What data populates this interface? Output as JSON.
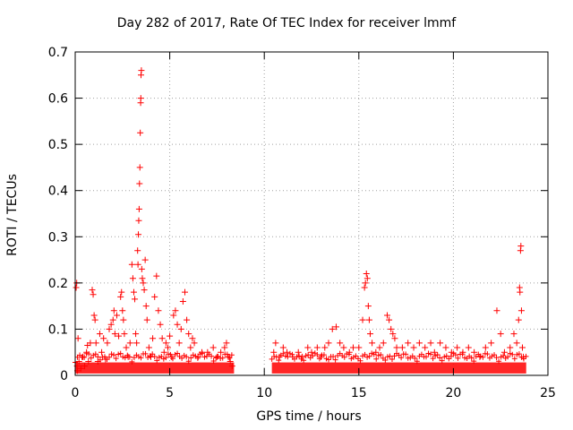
{
  "chart_data": {
    "type": "scatter",
    "title": "Day 282 of 2017, Rate Of TEC Index for receiver lmmf",
    "xlabel": "GPS time / hours",
    "ylabel": "ROTI / TECUs",
    "xlim": [
      0,
      25
    ],
    "ylim": [
      0,
      0.7
    ],
    "xticks": [
      "0",
      "5",
      "10",
      "15",
      "20",
      "25"
    ],
    "yticks": [
      "0",
      "0.1",
      "0.2",
      "0.3",
      "0.4",
      "0.5",
      "0.6",
      "0.7"
    ],
    "grid": true,
    "marker": "+",
    "color": "#ff0000",
    "data_gap_hours": [
      8.4,
      10.4
    ],
    "series": [
      {
        "points": [
          [
            0.05,
            0.19
          ],
          [
            0.08,
            0.2
          ],
          [
            0.1,
            0.02
          ],
          [
            0.12,
            0.01
          ],
          [
            0.15,
            0.08
          ],
          [
            0.2,
            0.03
          ],
          [
            0.3,
            0.015
          ],
          [
            0.4,
            0.04
          ],
          [
            0.5,
            0.02
          ],
          [
            0.6,
            0.05
          ],
          [
            0.65,
            0.065
          ],
          [
            0.7,
            0.03
          ],
          [
            0.8,
            0.07
          ],
          [
            0.9,
            0.185
          ],
          [
            0.95,
            0.175
          ],
          [
            1.0,
            0.13
          ],
          [
            1.05,
            0.12
          ],
          [
            1.1,
            0.07
          ],
          [
            1.2,
            0.03
          ],
          [
            1.3,
            0.09
          ],
          [
            1.4,
            0.05
          ],
          [
            1.5,
            0.08
          ],
          [
            1.6,
            0.035
          ],
          [
            1.7,
            0.07
          ],
          [
            1.8,
            0.1
          ],
          [
            1.9,
            0.11
          ],
          [
            2.0,
            0.12
          ],
          [
            2.05,
            0.14
          ],
          [
            2.1,
            0.09
          ],
          [
            2.2,
            0.13
          ],
          [
            2.3,
            0.085
          ],
          [
            2.4,
            0.17
          ],
          [
            2.45,
            0.18
          ],
          [
            2.5,
            0.14
          ],
          [
            2.55,
            0.12
          ],
          [
            2.6,
            0.09
          ],
          [
            2.7,
            0.06
          ],
          [
            2.8,
            0.04
          ],
          [
            2.9,
            0.07
          ],
          [
            3.0,
            0.24
          ],
          [
            3.05,
            0.21
          ],
          [
            3.1,
            0.18
          ],
          [
            3.15,
            0.165
          ],
          [
            3.2,
            0.09
          ],
          [
            3.25,
            0.07
          ],
          [
            3.3,
            0.27
          ],
          [
            3.32,
            0.24
          ],
          [
            3.34,
            0.305
          ],
          [
            3.36,
            0.335
          ],
          [
            3.38,
            0.36
          ],
          [
            3.4,
            0.415
          ],
          [
            3.42,
            0.45
          ],
          [
            3.44,
            0.525
          ],
          [
            3.46,
            0.59
          ],
          [
            3.47,
            0.6
          ],
          [
            3.48,
            0.65
          ],
          [
            3.5,
            0.66
          ],
          [
            3.52,
            0.23
          ],
          [
            3.55,
            0.21
          ],
          [
            3.6,
            0.2
          ],
          [
            3.65,
            0.185
          ],
          [
            3.7,
            0.25
          ],
          [
            3.75,
            0.15
          ],
          [
            3.8,
            0.12
          ],
          [
            3.9,
            0.06
          ],
          [
            4.0,
            0.04
          ],
          [
            4.1,
            0.08
          ],
          [
            4.2,
            0.17
          ],
          [
            4.3,
            0.215
          ],
          [
            4.4,
            0.14
          ],
          [
            4.5,
            0.11
          ],
          [
            4.6,
            0.08
          ],
          [
            4.7,
            0.05
          ],
          [
            4.8,
            0.07
          ],
          [
            4.9,
            0.06
          ],
          [
            5.0,
            0.085
          ],
          [
            5.1,
            0.04
          ],
          [
            5.2,
            0.13
          ],
          [
            5.3,
            0.14
          ],
          [
            5.4,
            0.11
          ],
          [
            5.5,
            0.07
          ],
          [
            5.6,
            0.1
          ],
          [
            5.7,
            0.16
          ],
          [
            5.8,
            0.18
          ],
          [
            5.9,
            0.12
          ],
          [
            6.0,
            0.09
          ],
          [
            6.1,
            0.06
          ],
          [
            6.2,
            0.08
          ],
          [
            6.3,
            0.07
          ],
          [
            6.5,
            0.04
          ],
          [
            6.7,
            0.05
          ],
          [
            7.0,
            0.05
          ],
          [
            7.3,
            0.06
          ],
          [
            7.5,
            0.04
          ],
          [
            7.7,
            0.05
          ],
          [
            7.9,
            0.06
          ],
          [
            8.0,
            0.07
          ],
          [
            8.1,
            0.04
          ],
          [
            8.2,
            0.03
          ],
          [
            8.3,
            0.02
          ],
          [
            10.5,
            0.05
          ],
          [
            10.6,
            0.07
          ],
          [
            10.8,
            0.04
          ],
          [
            11.0,
            0.06
          ],
          [
            11.2,
            0.05
          ],
          [
            11.5,
            0.04
          ],
          [
            11.8,
            0.05
          ],
          [
            12.0,
            0.04
          ],
          [
            12.3,
            0.06
          ],
          [
            12.5,
            0.05
          ],
          [
            12.8,
            0.06
          ],
          [
            13.0,
            0.04
          ],
          [
            13.2,
            0.06
          ],
          [
            13.4,
            0.07
          ],
          [
            13.6,
            0.1
          ],
          [
            13.8,
            0.105
          ],
          [
            14.0,
            0.07
          ],
          [
            14.2,
            0.06
          ],
          [
            14.5,
            0.05
          ],
          [
            14.7,
            0.06
          ],
          [
            15.0,
            0.06
          ],
          [
            15.2,
            0.12
          ],
          [
            15.3,
            0.19
          ],
          [
            15.35,
            0.2
          ],
          [
            15.4,
            0.22
          ],
          [
            15.45,
            0.21
          ],
          [
            15.5,
            0.15
          ],
          [
            15.55,
            0.12
          ],
          [
            15.6,
            0.09
          ],
          [
            15.7,
            0.07
          ],
          [
            15.9,
            0.05
          ],
          [
            16.1,
            0.06
          ],
          [
            16.3,
            0.07
          ],
          [
            16.5,
            0.13
          ],
          [
            16.6,
            0.12
          ],
          [
            16.7,
            0.1
          ],
          [
            16.8,
            0.09
          ],
          [
            16.9,
            0.08
          ],
          [
            17.0,
            0.06
          ],
          [
            17.3,
            0.06
          ],
          [
            17.6,
            0.07
          ],
          [
            17.9,
            0.06
          ],
          [
            18.2,
            0.07
          ],
          [
            18.5,
            0.06
          ],
          [
            18.8,
            0.07
          ],
          [
            19.0,
            0.05
          ],
          [
            19.3,
            0.07
          ],
          [
            19.6,
            0.06
          ],
          [
            19.9,
            0.05
          ],
          [
            20.2,
            0.06
          ],
          [
            20.5,
            0.05
          ],
          [
            20.8,
            0.06
          ],
          [
            21.1,
            0.05
          ],
          [
            21.4,
            0.04
          ],
          [
            21.7,
            0.06
          ],
          [
            22.0,
            0.07
          ],
          [
            22.3,
            0.14
          ],
          [
            22.5,
            0.09
          ],
          [
            22.7,
            0.05
          ],
          [
            23.0,
            0.06
          ],
          [
            23.2,
            0.09
          ],
          [
            23.35,
            0.07
          ],
          [
            23.45,
            0.12
          ],
          [
            23.5,
            0.19
          ],
          [
            23.52,
            0.18
          ],
          [
            23.55,
            0.27
          ],
          [
            23.57,
            0.28
          ],
          [
            23.6,
            0.14
          ],
          [
            23.65,
            0.06
          ],
          [
            23.7,
            0.04
          ]
        ]
      }
    ]
  }
}
